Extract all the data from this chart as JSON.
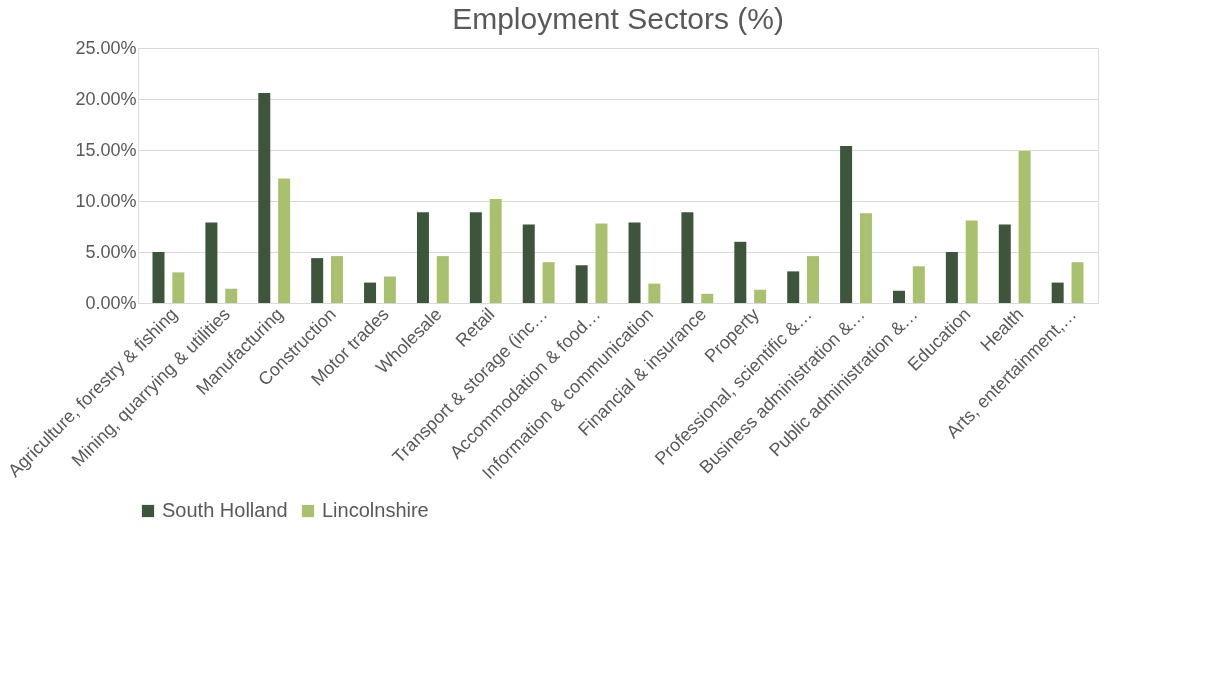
{
  "chart_data": {
    "type": "bar",
    "title": "Employment Sectors (%)",
    "categories": [
      "Agriculture, forestry & fishing",
      "Mining, quarrying & utilities",
      "Manufacturing",
      "Construction",
      "Motor trades",
      "Wholesale",
      "Retail",
      "Transport & storage (inc…",
      "Accommodation & food…",
      "Information & communication",
      "Financial & insurance",
      "Property",
      "Professional, scientific &…",
      "Business administration &…",
      "Public administration &…",
      "Education",
      "Health",
      "Arts, entertainment,…"
    ],
    "series": [
      {
        "name": "South Holland",
        "color": "#3d553b",
        "values": [
          5.0,
          7.9,
          20.6,
          4.4,
          2.0,
          8.9,
          8.9,
          7.7,
          3.7,
          7.9,
          8.9,
          6.0,
          3.1,
          15.4,
          1.2,
          5.0,
          7.7,
          2.0
        ]
      },
      {
        "name": "Lincolnshire",
        "color": "#a9c16f",
        "values": [
          3.0,
          1.4,
          12.2,
          4.6,
          2.6,
          4.6,
          10.2,
          4.0,
          7.8,
          1.9,
          0.9,
          1.3,
          4.6,
          8.8,
          3.6,
          8.1,
          14.9,
          4.0
        ]
      }
    ],
    "ylim": [
      0,
      25
    ],
    "yticks": [
      {
        "value": 0,
        "label": "0.00%"
      },
      {
        "value": 5,
        "label": "5.00%"
      },
      {
        "value": 10,
        "label": "10.00%"
      },
      {
        "value": 15,
        "label": "15.00%"
      },
      {
        "value": 20,
        "label": "20.00%"
      },
      {
        "value": 25,
        "label": "25.00%"
      }
    ],
    "grid": "y",
    "legend": "bottom"
  }
}
